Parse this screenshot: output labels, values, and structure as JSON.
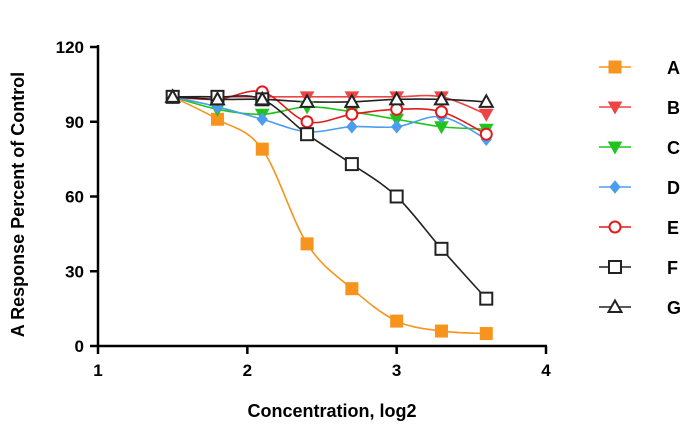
{
  "chart_data": {
    "type": "line",
    "title": "",
    "xlabel": "Concentration, log2",
    "ylabel": "A Response Percent of Control",
    "xlim": [
      1,
      4
    ],
    "ylim": [
      0,
      120
    ],
    "xticks": [
      1,
      2,
      3,
      4
    ],
    "yticks": [
      0,
      30,
      60,
      90,
      120
    ],
    "legend_position": "right",
    "grid": false,
    "x": [
      1.5,
      1.8,
      2.1,
      2.4,
      2.7,
      3.0,
      3.3,
      3.6
    ],
    "series": [
      {
        "name": "A",
        "color": "#f7941d",
        "marker": "square-filled",
        "values": [
          100,
          91,
          79,
          41,
          23,
          10,
          6,
          5
        ]
      },
      {
        "name": "B",
        "color": "#ef4444",
        "marker": "triangle-down-filled",
        "values": [
          100,
          100,
          100,
          100,
          100,
          100,
          100,
          93
        ]
      },
      {
        "name": "C",
        "color": "#22c31e",
        "marker": "triangle-down-filled",
        "values": [
          100,
          95,
          93,
          96,
          94,
          91,
          88,
          87
        ]
      },
      {
        "name": "D",
        "color": "#4c9df0",
        "marker": "diamond-filled",
        "values": [
          100,
          96,
          91,
          86,
          88,
          88,
          92,
          83
        ]
      },
      {
        "name": "E",
        "color": "#e31a1c",
        "marker": "circle-open",
        "values": [
          100,
          99,
          102,
          90,
          93,
          95,
          94,
          85
        ]
      },
      {
        "name": "F",
        "color": "#222222",
        "marker": "square-open",
        "values": [
          100,
          100,
          99,
          85,
          73,
          60,
          39,
          19
        ]
      },
      {
        "name": "G",
        "color": "#222222",
        "marker": "triangle-up-open",
        "values": [
          100,
          99,
          99,
          98,
          98,
          99,
          99,
          98
        ]
      }
    ]
  }
}
